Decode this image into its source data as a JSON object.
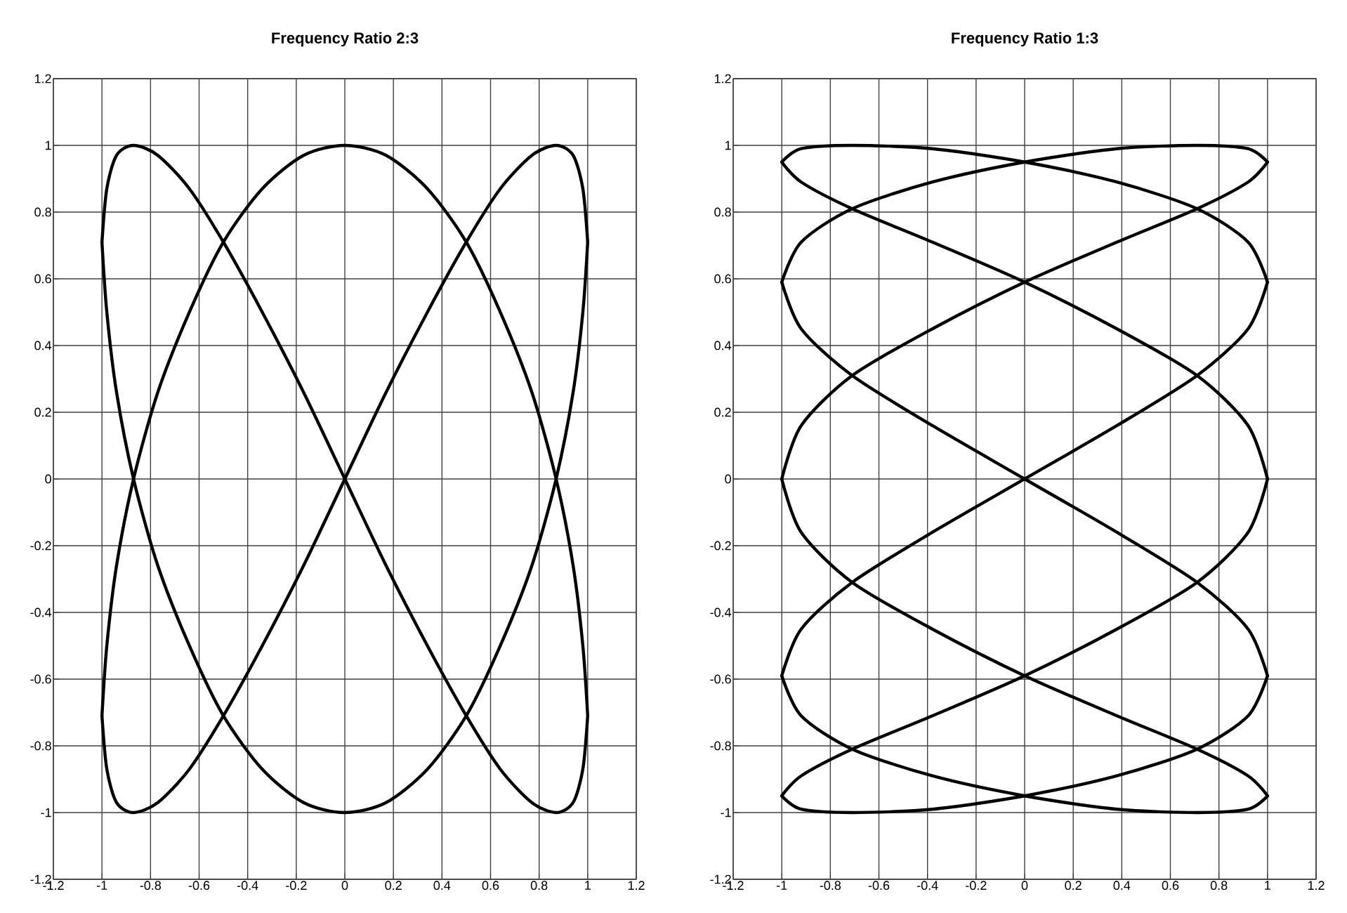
{
  "chart_data": [
    {
      "type": "line",
      "title": "Frequency Ratio 2:3",
      "marker": "none",
      "grid": true,
      "xlim": [
        -1.2,
        1.2
      ],
      "ylim": [
        -1.2,
        1.2
      ],
      "xticks": [
        -1.2,
        -1,
        -0.8,
        -0.6,
        -0.4,
        -0.2,
        0,
        0.2,
        0.4,
        0.6,
        0.8,
        1,
        1.2
      ],
      "yticks": [
        -1.2,
        -1,
        -0.8,
        -0.6,
        -0.4,
        -0.2,
        0,
        0.2,
        0.4,
        0.6,
        0.8,
        1,
        1.2
      ],
      "series": [
        {
          "color": "#000000",
          "x": [
            -1,
            -0.98,
            -0.94,
            -0.87,
            -0.77,
            -0.64,
            -0.5,
            -0.34,
            -0.17,
            0,
            0.17,
            0.34,
            0.5,
            0.64,
            0.77,
            0.87,
            0.94,
            0.98,
            1
          ],
          "values": [
            -0.71,
            -0.5,
            -0.26,
            0,
            0.26,
            0.5,
            0.71,
            0.87,
            0.97,
            1,
            0.97,
            0.87,
            0.71,
            0.5,
            0.26,
            0,
            -0.26,
            -0.5,
            -0.71
          ]
        },
        {
          "color": "#000000",
          "x": [
            1,
            0.98,
            0.94,
            0.87,
            0.77,
            0.64,
            0.5,
            0.34,
            0.17,
            0,
            -0.17,
            -0.34,
            -0.5,
            -0.64,
            -0.77,
            -0.87,
            -0.94,
            -0.98,
            -1
          ],
          "values": [
            -0.71,
            -0.87,
            -0.97,
            -1,
            -0.97,
            -0.87,
            -0.71,
            -0.5,
            -0.26,
            0,
            0.26,
            0.5,
            0.71,
            0.87,
            0.97,
            1,
            0.97,
            0.87,
            0.71
          ]
        },
        {
          "color": "#000000",
          "x": [
            -1,
            -0.98,
            -0.94,
            -0.87,
            -0.77,
            -0.64,
            -0.5,
            -0.34,
            -0.17,
            0,
            0.17,
            0.34,
            0.5,
            0.64,
            0.77,
            0.87,
            0.94,
            0.98,
            1
          ],
          "values": [
            0.71,
            0.5,
            0.26,
            0,
            -0.26,
            -0.5,
            -0.71,
            -0.87,
            -0.97,
            -1,
            -0.97,
            -0.87,
            -0.71,
            -0.5,
            -0.26,
            0,
            0.26,
            0.5,
            0.71
          ]
        },
        {
          "color": "#000000",
          "x": [
            1,
            0.98,
            0.94,
            0.87,
            0.77,
            0.64,
            0.5,
            0.34,
            0.17,
            0,
            -0.17,
            -0.34,
            -0.5,
            -0.64,
            -0.77,
            -0.87,
            -0.94,
            -0.98,
            -1
          ],
          "values": [
            0.71,
            0.87,
            0.97,
            1,
            0.97,
            0.87,
            0.71,
            0.5,
            0.26,
            0,
            -0.26,
            -0.5,
            -0.71,
            -0.87,
            -0.97,
            -1,
            -0.97,
            -0.87,
            -0.71
          ]
        }
      ]
    },
    {
      "type": "line",
      "title": "Frequency Ratio 1:3",
      "marker": "none",
      "grid": true,
      "xlim": [
        -1.2,
        1.2
      ],
      "ylim": [
        -1.2,
        1.2
      ],
      "xticks": [
        -1.2,
        -1,
        -0.8,
        -0.6,
        -0.4,
        -0.2,
        0,
        0.2,
        0.4,
        0.6,
        0.8,
        1,
        1.2
      ],
      "yticks": [
        -1.2,
        -1,
        -0.8,
        -0.6,
        -0.4,
        -0.2,
        0,
        0.2,
        0.4,
        0.6,
        0.8,
        1,
        1.2
      ],
      "series": [
        {
          "color": "#000000",
          "x": [
            1,
            0.92,
            0.71,
            0.38,
            0,
            -0.38,
            -0.71,
            -0.92,
            -1
          ],
          "values": [
            0.59,
            0.71,
            0.81,
            0.89,
            0.95,
            0.99,
            1,
            0.99,
            0.95
          ]
        },
        {
          "color": "#000000",
          "x": [
            -1,
            -0.92,
            -0.71,
            -0.38,
            0,
            0.38,
            0.71,
            0.92,
            1
          ],
          "values": [
            0.95,
            0.89,
            0.81,
            0.71,
            0.59,
            0.45,
            0.31,
            0.16,
            0
          ]
        },
        {
          "color": "#000000",
          "x": [
            1,
            0.92,
            0.71,
            0.38,
            0,
            -0.38,
            -0.71,
            -0.92,
            -1
          ],
          "values": [
            0,
            -0.16,
            -0.31,
            -0.45,
            -0.59,
            -0.71,
            -0.81,
            -0.89,
            -0.95
          ]
        },
        {
          "color": "#000000",
          "x": [
            -1,
            -0.92,
            -0.71,
            -0.38,
            0,
            0.38,
            0.71,
            0.92,
            1
          ],
          "values": [
            -0.95,
            -0.99,
            -1,
            -0.99,
            -0.95,
            -0.89,
            -0.81,
            -0.71,
            -0.59
          ]
        },
        {
          "color": "#000000",
          "x": [
            1,
            0.92,
            0.71,
            0.38,
            0,
            -0.38,
            -0.71,
            -0.92,
            -1
          ],
          "values": [
            -0.59,
            -0.45,
            -0.31,
            -0.16,
            0,
            0.16,
            0.31,
            0.45,
            0.59
          ]
        },
        {
          "color": "#000000",
          "x": [
            -1,
            -0.92,
            -0.71,
            -0.38,
            0,
            0.38,
            0.71,
            0.92,
            1
          ],
          "values": [
            0.59,
            0.71,
            0.81,
            0.89,
            0.95,
            0.99,
            1,
            0.99,
            0.95
          ]
        },
        {
          "color": "#000000",
          "x": [
            1,
            0.92,
            0.71,
            0.38,
            0,
            -0.38,
            -0.71,
            -0.92,
            -1
          ],
          "values": [
            0.95,
            0.89,
            0.81,
            0.71,
            0.59,
            0.45,
            0.31,
            0.16,
            0
          ]
        },
        {
          "color": "#000000",
          "x": [
            -1,
            -0.92,
            -0.71,
            -0.38,
            0,
            0.38,
            0.71,
            0.92,
            1
          ],
          "values": [
            0,
            -0.16,
            -0.31,
            -0.45,
            -0.59,
            -0.71,
            -0.81,
            -0.89,
            -0.95
          ]
        },
        {
          "color": "#000000",
          "x": [
            1,
            0.92,
            0.71,
            0.38,
            0,
            -0.38,
            -0.71,
            -0.92,
            -1
          ],
          "values": [
            -0.95,
            -0.99,
            -1,
            -0.99,
            -0.95,
            -0.89,
            -0.81,
            -0.71,
            -0.59
          ]
        },
        {
          "color": "#000000",
          "x": [
            -1,
            -0.92,
            -0.71,
            -0.38,
            0,
            0.38,
            0.71,
            0.92,
            1
          ],
          "values": [
            -0.59,
            -0.45,
            -0.31,
            -0.16,
            0,
            0.16,
            0.31,
            0.45,
            0.59
          ]
        }
      ]
    }
  ]
}
